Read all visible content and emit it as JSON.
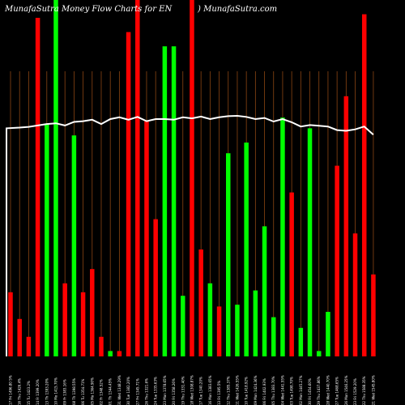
{
  "chart_data": {
    "type": "bar",
    "title_left": "MunafaSutra  Money Flow  Charts for EN",
    "title_right": ") MunafaSutra.com",
    "ylim": [
      0,
      100
    ],
    "grid": "vertical",
    "colors": {
      "up": "#00ff00",
      "down": "#ff0000",
      "grid": "#8b4513",
      "line": "#ffffff",
      "background": "#000000"
    },
    "bars": [
      {
        "label": "17 Fri 1496.80 5%",
        "value": 18,
        "color": "down"
      },
      {
        "label": "16 Thu 1426.4%",
        "value": 10.5,
        "color": "down"
      },
      {
        "label": "15 Tu 1423.2%",
        "value": 5.5,
        "color": "down"
      },
      {
        "label": "14 Fr 1399.20%",
        "value": 95,
        "color": "down"
      },
      {
        "label": "13 Th 1393.20%",
        "value": 65,
        "color": "up"
      },
      {
        "label": "10 Mo 1415.70%",
        "value": 100,
        "color": "up"
      },
      {
        "label": "09 Fr 1383.16%",
        "value": 20.5,
        "color": "down"
      },
      {
        "label": "08 Th 1398.55%",
        "value": 62,
        "color": "up"
      },
      {
        "label": "06 Tu 1354.71%",
        "value": 18,
        "color": "down"
      },
      {
        "label": "05 Mo 1364.90%",
        "value": 24.5,
        "color": "down"
      },
      {
        "label": "02 Fr 1348.52%",
        "value": 5.5,
        "color": "down"
      },
      {
        "label": "01 Th 1344.45%",
        "value": 1.5,
        "color": "up"
      },
      {
        "label": "31 Wed 1348.29%",
        "value": 1.5,
        "color": "down"
      },
      {
        "label": "30 Tue 1382.20%",
        "value": 91,
        "color": "down"
      },
      {
        "label": "27 Fri 1345.71%",
        "value": 100,
        "color": "down"
      },
      {
        "label": "26 Thu 1321.6%",
        "value": 66,
        "color": "down"
      },
      {
        "label": "24 Tue 1335.63%",
        "value": 38.5,
        "color": "down"
      },
      {
        "label": "23 Mon 1378.65%",
        "value": 87,
        "color": "up"
      },
      {
        "label": "20 Fri 1358.26%",
        "value": 87,
        "color": "up"
      },
      {
        "label": "19 Thu 1331.40%",
        "value": 17,
        "color": "up"
      },
      {
        "label": "18 Wed 1308.87%",
        "value": 100,
        "color": "down"
      },
      {
        "label": "17 Tue 1340.20%",
        "value": 30,
        "color": "down"
      },
      {
        "label": "16 Mon 1383.65%",
        "value": 20.5,
        "color": "up"
      },
      {
        "label": "13 Fri 1395.5%",
        "value": 14,
        "color": "down"
      },
      {
        "label": "12 Thu 1385.37%",
        "value": 57,
        "color": "up"
      },
      {
        "label": "11 Wed 1426.55%",
        "value": 14.5,
        "color": "up"
      },
      {
        "label": "10 Tue 1418.92%",
        "value": 60,
        "color": "up"
      },
      {
        "label": "09 Mon 1424.36%",
        "value": 18.5,
        "color": "up"
      },
      {
        "label": "06 Fri 1402.93%",
        "value": 36.5,
        "color": "up"
      },
      {
        "label": "05 Thu 1383.70%",
        "value": 11,
        "color": "up"
      },
      {
        "label": "04 Wed 1441.55%",
        "value": 67,
        "color": "up"
      },
      {
        "label": "03 Tue 1498.70%",
        "value": 46,
        "color": "down"
      },
      {
        "label": "02 Mon 1445.27%",
        "value": 8,
        "color": "up"
      },
      {
        "label": "30 Fri 1454.60%",
        "value": 64,
        "color": "up"
      },
      {
        "label": "29 Thu 1437.86%",
        "value": 1.5,
        "color": "up"
      },
      {
        "label": "28 Wed 1440.70%",
        "value": 12.5,
        "color": "up"
      },
      {
        "label": "27 Tue 1468.65%",
        "value": 53.5,
        "color": "down"
      },
      {
        "label": "26 Mon 1546.25%",
        "value": 73,
        "color": "down"
      },
      {
        "label": "23 Fri 1529.20%",
        "value": 34.5,
        "color": "down"
      },
      {
        "label": "22 Thu 1588.35%",
        "value": 96,
        "color": "down"
      },
      {
        "label": "21 Wed 1545.80%",
        "value": 23,
        "color": "down"
      }
    ],
    "price_line": [
      {
        "value": 0,
        "at": 0
      },
      {
        "value": 64,
        "at": 1
      },
      {
        "value": 64.2,
        "at": 2
      },
      {
        "value": 64.4,
        "at": 3
      },
      {
        "value": 64.8,
        "at": 4
      },
      {
        "value": 65.2,
        "at": 5
      },
      {
        "value": 65.4,
        "at": 6
      },
      {
        "value": 64.8,
        "at": 7
      },
      {
        "value": 65.8,
        "at": 8
      },
      {
        "value": 66,
        "at": 9
      },
      {
        "value": 66.4,
        "at": 10
      },
      {
        "value": 65.2,
        "at": 11
      },
      {
        "value": 66.6,
        "at": 12
      },
      {
        "value": 67.1,
        "at": 13
      },
      {
        "value": 66.4,
        "at": 14
      },
      {
        "value": 67.2,
        "at": 15
      },
      {
        "value": 66,
        "at": 16
      },
      {
        "value": 66.6,
        "at": 17
      },
      {
        "value": 66.6,
        "at": 18
      },
      {
        "value": 66.4,
        "at": 19
      },
      {
        "value": 67.1,
        "at": 20
      },
      {
        "value": 66.8,
        "at": 21
      },
      {
        "value": 67.3,
        "at": 22
      },
      {
        "value": 66.6,
        "at": 23
      },
      {
        "value": 67.1,
        "at": 24
      },
      {
        "value": 67.4,
        "at": 25
      },
      {
        "value": 67.5,
        "at": 26
      },
      {
        "value": 67.2,
        "at": 27
      },
      {
        "value": 66.6,
        "at": 28
      },
      {
        "value": 66.9,
        "at": 29
      },
      {
        "value": 65.9,
        "at": 30
      },
      {
        "value": 66.6,
        "at": 31
      },
      {
        "value": 65.7,
        "at": 32
      },
      {
        "value": 64.5,
        "at": 33
      },
      {
        "value": 64.9,
        "at": 34
      },
      {
        "value": 64.7,
        "at": 35
      },
      {
        "value": 64.5,
        "at": 36
      },
      {
        "value": 63.5,
        "at": 37
      },
      {
        "value": 63.3,
        "at": 38
      },
      {
        "value": 63.7,
        "at": 39
      },
      {
        "value": 64.5,
        "at": 40
      },
      {
        "value": 62.2,
        "at": 41
      }
    ]
  }
}
